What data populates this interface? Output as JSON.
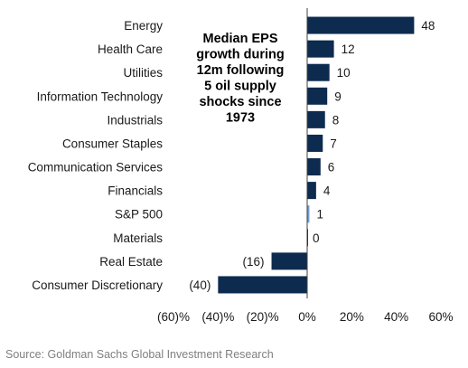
{
  "chart_data": {
    "type": "bar",
    "orientation": "horizontal",
    "title_lines": [
      "Median EPS",
      "growth during",
      "12m following",
      "5 oil supply",
      "shocks since",
      "1973"
    ],
    "categories": [
      "Energy",
      "Health Care",
      "Utilities",
      "Information Technology",
      "Industrials",
      "Consumer Staples",
      "Communication Services",
      "Financials",
      "S&P 500",
      "Materials",
      "Real Estate",
      "Consumer Discretionary"
    ],
    "values": [
      48,
      12,
      10,
      9,
      8,
      7,
      6,
      4,
      1,
      0,
      -16,
      -40
    ],
    "value_labels": [
      "48",
      "12",
      "10",
      "9",
      "8",
      "7",
      "6",
      "4",
      "1",
      "0",
      "(16)",
      "(40)"
    ],
    "highlight_category": "S&P 500",
    "xlim": [
      -60,
      60
    ],
    "xticks": [
      -60,
      -40,
      -20,
      0,
      20,
      40,
      60
    ],
    "xtick_labels": [
      "(60)%",
      "(40)%",
      "(20)%",
      "0%",
      "20%",
      "40%",
      "60%"
    ],
    "xlabel": "",
    "ylabel": "",
    "grid": false,
    "colors": {
      "bar": "#0d2b4f",
      "highlight": "#6f9fd8",
      "axis": "#404040"
    }
  },
  "source": "Source: Goldman Sachs Global Investment Research"
}
